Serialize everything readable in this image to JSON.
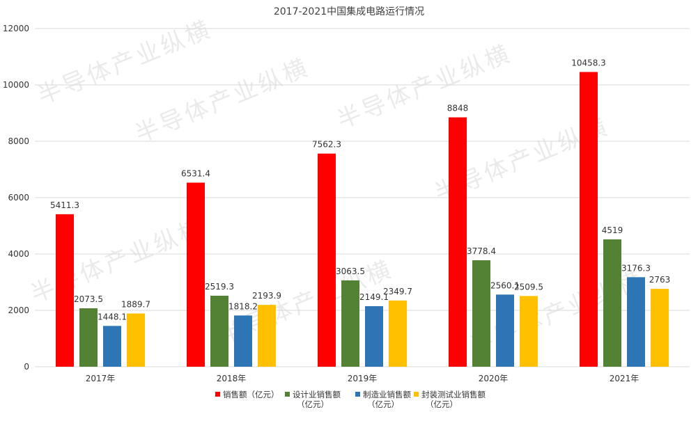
{
  "watermark": "半导体产业纵横",
  "chart_data": {
    "type": "bar",
    "title": "2017-2021中国集成电路运行情况",
    "xlabel": "",
    "ylabel": "",
    "ylim": [
      0,
      12000
    ],
    "yticks": [
      0,
      2000,
      4000,
      6000,
      8000,
      10000,
      12000
    ],
    "grid": true,
    "legend_position": "bottom",
    "categories": [
      "2017年",
      "2018年",
      "2019年",
      "2020年",
      "2021年"
    ],
    "series": [
      {
        "name": "销售额（亿元）",
        "name_lines": [
          "销售额（亿元）"
        ],
        "color": "#ff0000",
        "values": [
          5411.3,
          6531.4,
          7562.3,
          8848,
          10458.3
        ],
        "labels": [
          "5411.3",
          "6531.4",
          "7562.3",
          "8848",
          "10458.3"
        ]
      },
      {
        "name": "设计业销售额（亿元）",
        "name_lines": [
          "设计业销售额",
          "（亿元）"
        ],
        "color": "#548235",
        "values": [
          2073.5,
          2519.3,
          3063.5,
          3778.4,
          4519
        ],
        "labels": [
          "2073.5",
          "2519.3",
          "3063.5",
          "3778.4",
          "4519"
        ]
      },
      {
        "name": "制造业销售额（亿元）",
        "name_lines": [
          "制造业销售额",
          "（亿元）"
        ],
        "color": "#2e75b6",
        "values": [
          1448.1,
          1818.2,
          2149.1,
          2560.1,
          3176.3
        ],
        "labels": [
          "1448.1",
          "1818.2",
          "2149.1",
          "2560.1",
          "3176.3"
        ]
      },
      {
        "name": "封装测试业销售额（亿元）",
        "name_lines": [
          "封装测试业销售额",
          "（亿元）"
        ],
        "color": "#ffc000",
        "values": [
          1889.7,
          2193.9,
          2349.7,
          2509.5,
          2763
        ],
        "labels": [
          "1889.7",
          "2193.9",
          "2349.7",
          "2509.5",
          "2763"
        ]
      }
    ]
  }
}
